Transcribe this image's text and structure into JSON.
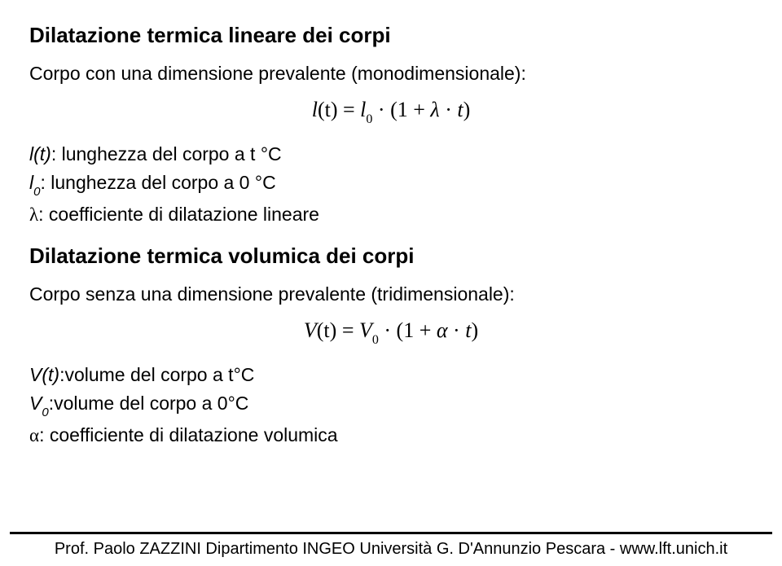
{
  "title1": "Dilatazione termica lineare dei corpi",
  "intro1": "Corpo con una dimensione prevalente (monodimensionale):",
  "formula1": {
    "lhs_l": "l",
    "lhs_arg": "(t)",
    "eq": " = ",
    "l0_l": "l",
    "l0_sub": "0",
    "dot": " · ",
    "open": "(",
    "one": "1",
    "plus": " + ",
    "lambda": "λ",
    "dot2": " · ",
    "t": "t",
    "close": ")"
  },
  "defs1": {
    "a_var": "l(t)",
    "a_rest": ": lunghezza del corpo a t °C",
    "b_var_l": "l",
    "b_var_sub": "0",
    "b_rest": ": lunghezza del corpo a 0 °C",
    "c_sym": "λ",
    "c_rest": ": coefficiente di dilatazione lineare"
  },
  "title2": "Dilatazione termica volumica dei corpi",
  "intro2": "Corpo senza una dimensione prevalente (tridimensionale):",
  "formula2": {
    "lhs_V": "V",
    "lhs_arg": "(t)",
    "eq": " = ",
    "V0_V": "V",
    "V0_sub": "0",
    "dot": " · ",
    "open": "(",
    "one": "1",
    "plus": " + ",
    "alpha": "α",
    "dot2": " · ",
    "t": "t",
    "close": ")"
  },
  "defs2": {
    "a_var": "V(t)",
    "a_rest": ":volume del corpo a t°C",
    "b_var_V": "V",
    "b_var_sub": "0",
    "b_rest": ":volume del corpo a 0°C",
    "c_sym": "α",
    "c_rest": ": coefficiente di dilatazione volumica"
  },
  "footer": "Prof. Paolo ZAZZINI Dipartimento INGEO Università G. D'Annunzio Pescara - www.lft.unich.it"
}
